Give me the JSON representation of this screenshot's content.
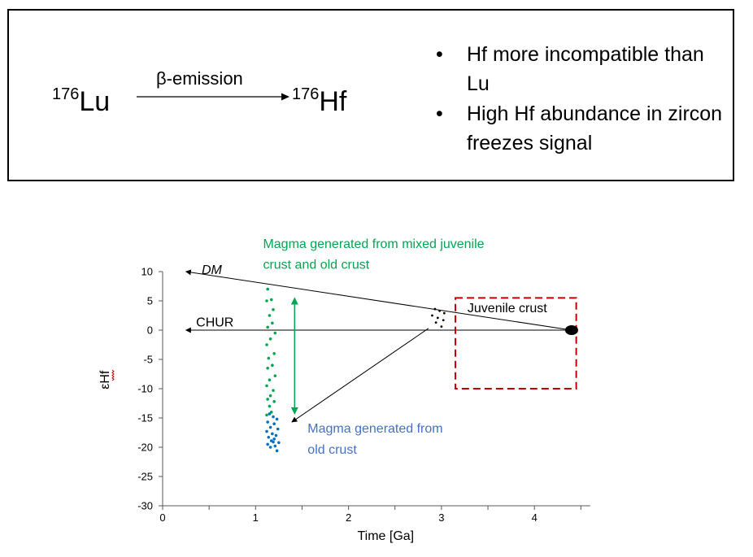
{
  "reaction": {
    "parent_mass": "176",
    "parent_symbol": "Lu",
    "process": "β-emission",
    "daughter_mass": "176",
    "daughter_symbol": "Hf"
  },
  "bullets": [
    "Hf more incompatible than Lu",
    "High Hf abundance in zircon freezes signal"
  ],
  "chart_data": {
    "type": "scatter",
    "xlabel": "Time [Ga]",
    "ylabel": "εHf",
    "xlim": [
      0,
      4.6
    ],
    "ylim": [
      -30,
      10
    ],
    "xticks": [
      0,
      1,
      2,
      3,
      4
    ],
    "yticks": [
      10,
      5,
      0,
      -5,
      -10,
      -15,
      -20,
      -25,
      -30
    ],
    "lines": [
      {
        "name": "DM",
        "x": [
          4.4,
          0.25
        ],
        "y": [
          0,
          10
        ]
      },
      {
        "name": "CHUR",
        "x": [
          4.4,
          0.25
        ],
        "y": [
          0,
          0
        ]
      }
    ],
    "series": [
      {
        "name": "Magma generated from mixed juvenile crust and old crust",
        "color": "#00a651",
        "x": [
          1.13,
          1.17,
          1.12,
          1.19,
          1.15,
          1.18,
          1.13,
          1.21,
          1.16,
          1.12,
          1.2,
          1.14,
          1.18,
          1.13,
          1.21,
          1.15,
          1.12,
          1.19,
          1.16,
          1.13,
          1.2,
          1.15,
          1.17,
          1.12
        ],
        "y": [
          7,
          5.2,
          5,
          3.5,
          2.5,
          1.2,
          0.5,
          -0.5,
          -1.5,
          -2.5,
          -4,
          -4.8,
          -6,
          -6.5,
          -7.8,
          -8.5,
          -9.5,
          -10.3,
          -11.2,
          -11.8,
          -12.2,
          -13,
          -14,
          -14.5
        ]
      },
      {
        "name": "Magma generated from old crust",
        "color": "#0070c0",
        "x": [
          1.15,
          1.19,
          1.23,
          1.13,
          1.2,
          1.16,
          1.24,
          1.12,
          1.18,
          1.22,
          1.14,
          1.2,
          1.17,
          1.25,
          1.13,
          1.21,
          1.16,
          1.19,
          1.23
        ],
        "y": [
          -14.3,
          -14.8,
          -15.2,
          -15.7,
          -16,
          -16.6,
          -16.9,
          -17.3,
          -17.7,
          -18,
          -18.3,
          -18.6,
          -18.9,
          -19.2,
          -19.5,
          -19.8,
          -20,
          -19.1,
          -20.6
        ]
      },
      {
        "name": "Juvenile crust",
        "color": "#000000",
        "x": [
          2.93,
          2.98,
          3.03,
          2.9,
          2.96,
          3.02,
          2.94,
          3.0
        ],
        "y": [
          3.6,
          3.3,
          2.9,
          2.5,
          2.1,
          1.7,
          1.3,
          0.6
        ]
      }
    ],
    "source_point": {
      "x": 4.4,
      "y": 0
    },
    "annotations": [
      {
        "text": "DM"
      },
      {
        "text": "CHUR"
      },
      {
        "text": "Juvenile crust"
      },
      {
        "text": "Magma generated from mixed juvenile crust and old crust"
      },
      {
        "text": "Magma generated from old crust"
      }
    ],
    "arrows": [
      {
        "from": [
          1.42,
          5.5
        ],
        "to": [
          1.42,
          -14.3
        ],
        "color": "#00a651",
        "double": true
      },
      {
        "from": [
          2.86,
          0.3
        ],
        "to": [
          1.39,
          -15.7
        ],
        "color": "#000000"
      }
    ],
    "box": {
      "x": [
        3.15,
        4.45
      ],
      "y": [
        -10,
        5.5
      ],
      "color": "#c00000",
      "style": "dashed"
    },
    "grid": false
  },
  "colors": {
    "green": "#00a651",
    "blue": "#4472c4",
    "red": "#c00000"
  }
}
